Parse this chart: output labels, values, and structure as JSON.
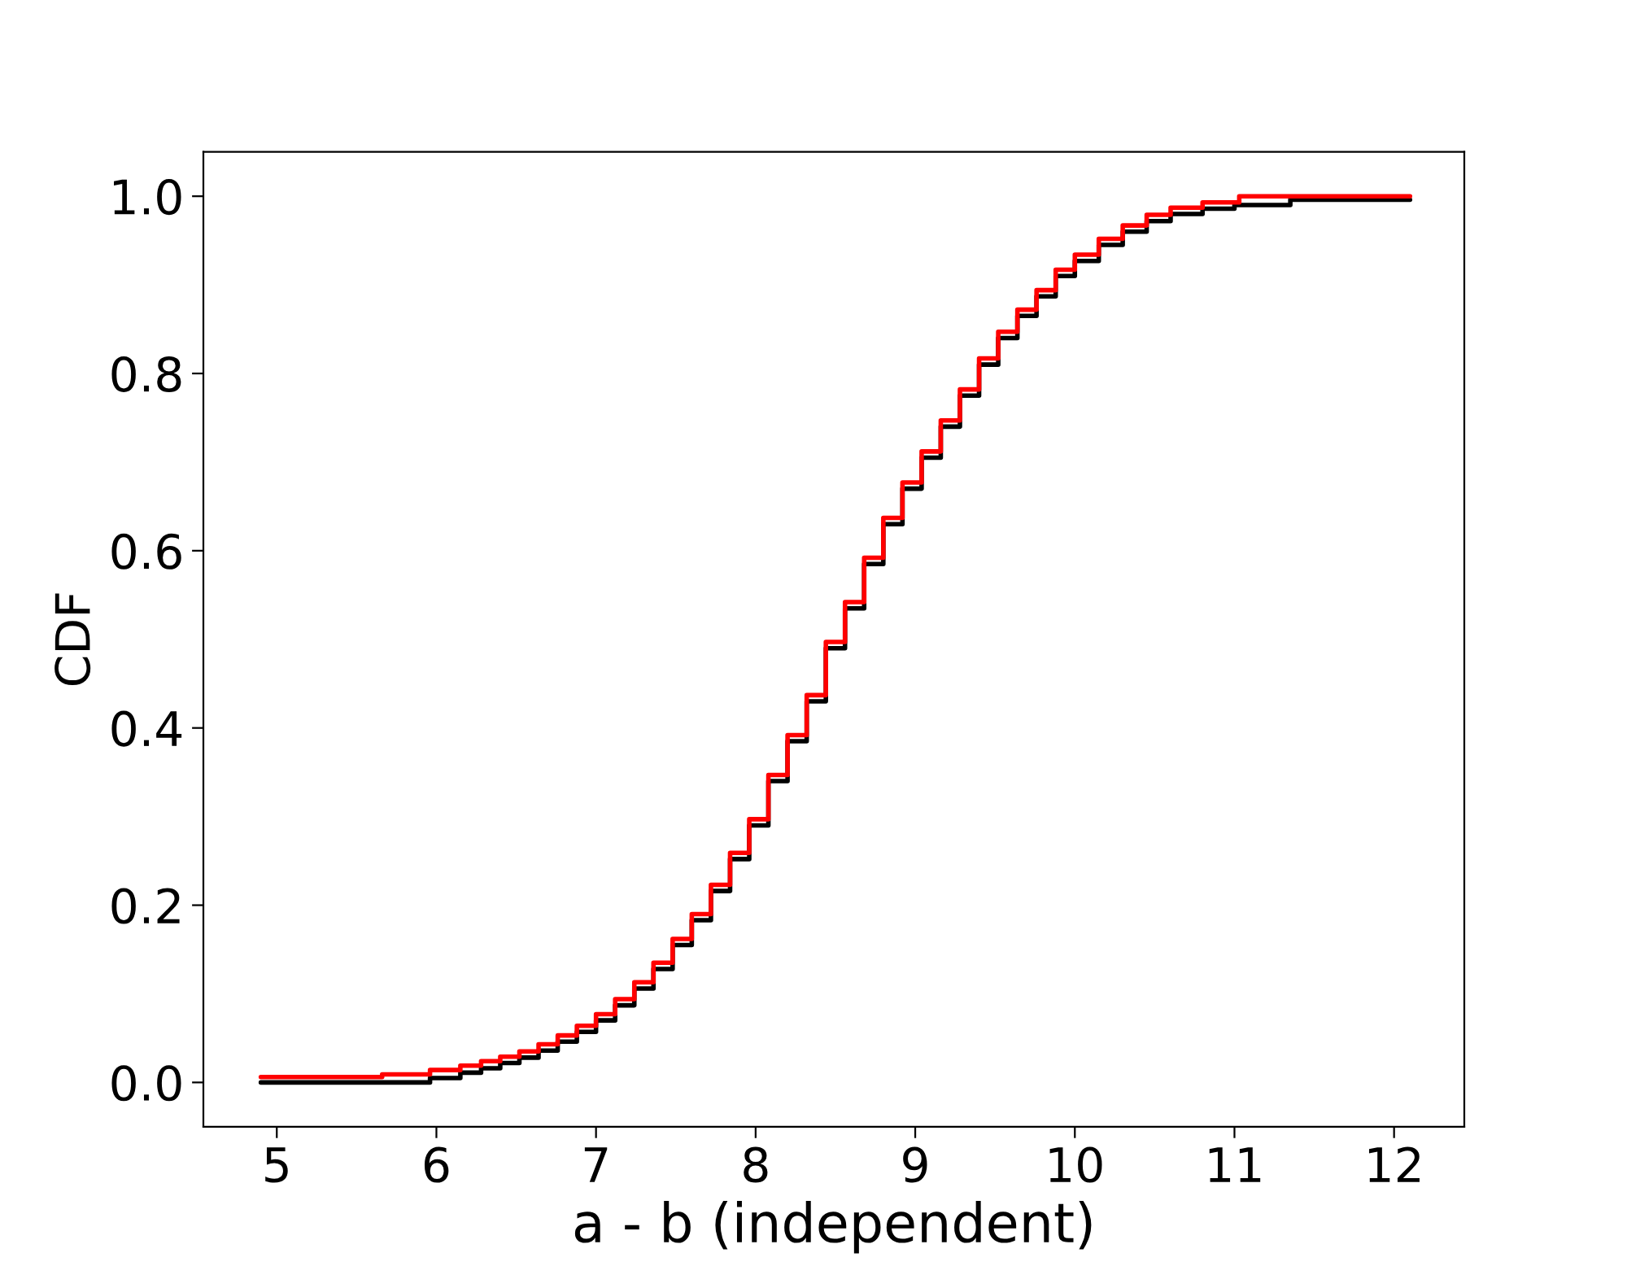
{
  "chart_data": {
    "type": "step",
    "xlabel": "a - b (independent)",
    "ylabel": "CDF",
    "xlim": [
      4.54,
      12.44
    ],
    "ylim": [
      -0.05,
      1.05
    ],
    "xticks": [
      5,
      6,
      7,
      8,
      9,
      10,
      11,
      12
    ],
    "yticks": [
      {
        "value": 0,
        "label": "0.0"
      },
      {
        "value": 0.2,
        "label": "0.2"
      },
      {
        "value": 0.4,
        "label": "0.4"
      },
      {
        "value": 0.6,
        "label": "0.6"
      },
      {
        "value": 0.8,
        "label": "0.8"
      },
      {
        "value": 1,
        "label": "1.0"
      }
    ],
    "grid": false,
    "series": [
      {
        "color": "#000000",
        "x": [
          4.9,
          5.96,
          6.15,
          6.28,
          6.4,
          6.52,
          6.64,
          6.76,
          6.88,
          7.0,
          7.12,
          7.24,
          7.36,
          7.48,
          7.6,
          7.72,
          7.84,
          7.96,
          8.08,
          8.2,
          8.32,
          8.44,
          8.56,
          8.68,
          8.8,
          8.92,
          9.04,
          9.16,
          9.28,
          9.4,
          9.52,
          9.64,
          9.76,
          9.88,
          10.0,
          10.15,
          10.3,
          10.45,
          10.6,
          10.8,
          11.0,
          11.35,
          12.1
        ],
        "values": [
          0.0,
          0.005,
          0.011,
          0.016,
          0.022,
          0.028,
          0.036,
          0.046,
          0.057,
          0.07,
          0.087,
          0.106,
          0.128,
          0.155,
          0.183,
          0.216,
          0.252,
          0.29,
          0.34,
          0.385,
          0.43,
          0.49,
          0.535,
          0.585,
          0.63,
          0.67,
          0.705,
          0.74,
          0.775,
          0.81,
          0.84,
          0.865,
          0.887,
          0.91,
          0.927,
          0.945,
          0.96,
          0.972,
          0.98,
          0.986,
          0.99,
          0.996,
          0.996
        ]
      },
      {
        "color": "#ff0000",
        "x": [
          4.9,
          5.66,
          5.96,
          6.15,
          6.28,
          6.4,
          6.52,
          6.64,
          6.76,
          6.88,
          7.0,
          7.12,
          7.24,
          7.36,
          7.48,
          7.6,
          7.72,
          7.84,
          7.96,
          8.08,
          8.2,
          8.32,
          8.44,
          8.56,
          8.68,
          8.8,
          8.92,
          9.04,
          9.16,
          9.28,
          9.4,
          9.52,
          9.64,
          9.76,
          9.88,
          10.0,
          10.15,
          10.3,
          10.45,
          10.6,
          10.8,
          11.03,
          12.1
        ],
        "values": [
          0.006,
          0.009,
          0.014,
          0.019,
          0.024,
          0.029,
          0.035,
          0.043,
          0.053,
          0.064,
          0.077,
          0.094,
          0.113,
          0.135,
          0.162,
          0.19,
          0.223,
          0.259,
          0.297,
          0.347,
          0.392,
          0.437,
          0.497,
          0.542,
          0.592,
          0.637,
          0.677,
          0.712,
          0.747,
          0.782,
          0.817,
          0.847,
          0.872,
          0.894,
          0.917,
          0.934,
          0.952,
          0.967,
          0.979,
          0.987,
          0.993,
          1.0,
          1.0
        ]
      }
    ]
  }
}
